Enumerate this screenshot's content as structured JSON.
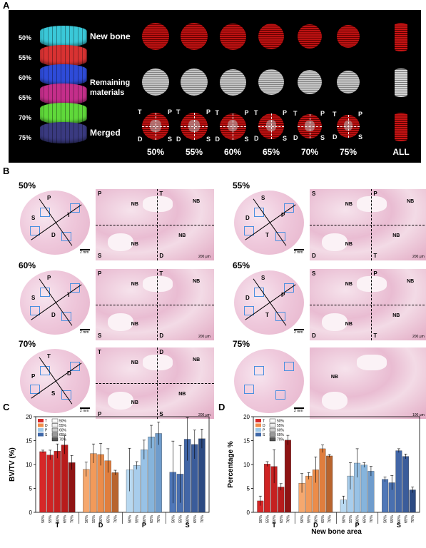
{
  "panel_labels": {
    "a": "A",
    "b": "B",
    "c": "C",
    "d": "D"
  },
  "panelA": {
    "stack_percentages": [
      "50%",
      "55%",
      "60%",
      "65%",
      "70%",
      "75%"
    ],
    "row_labels": {
      "new_bone": "New bone",
      "remaining_line1": "Remaining",
      "remaining_line2": "materials",
      "merged": "Merged"
    },
    "column_labels": [
      "50%",
      "55%",
      "60%",
      "65%",
      "70%",
      "75%",
      "ALL"
    ],
    "merged_quadrant_letters": [
      "T",
      "P",
      "D",
      "S"
    ],
    "colors": {
      "new_bone": "#c81414",
      "remaining": "#bdbdbd",
      "stack": [
        "#3ac8d8",
        "#d83232",
        "#2e4bd8",
        "#c42e8a",
        "#5fd83a",
        "#3a3a80"
      ]
    }
  },
  "panelB": {
    "groups": [
      {
        "label": "50%",
        "quadrants": [
          "P",
          "T",
          "S",
          "D"
        ],
        "overview_letters": [
          "P",
          "T",
          "S",
          "D"
        ],
        "nb_labels": [
          "NB",
          "NB",
          "NB",
          "NB"
        ]
      },
      {
        "label": "55%",
        "quadrants": [
          "S",
          "P",
          "D",
          "T"
        ],
        "overview_letters": [
          "S",
          "P",
          "D",
          "T"
        ],
        "nb_labels": [
          "NB",
          "NB",
          "NB",
          "NB"
        ]
      },
      {
        "label": "60%",
        "quadrants": [
          "P",
          "T",
          "S",
          "D"
        ],
        "overview_letters": [
          "P",
          "T",
          "S",
          "D"
        ],
        "nb_labels": [
          "NB",
          "NB",
          "NB"
        ]
      },
      {
        "label": "65%",
        "quadrants": [
          "S",
          "P",
          "D",
          "T"
        ],
        "overview_letters": [
          "S",
          "P",
          "D",
          "T"
        ],
        "nb_labels": [
          "NB",
          "NB",
          "NB",
          "NB"
        ]
      },
      {
        "label": "70%",
        "quadrants": [
          "T",
          "D",
          "P",
          "S"
        ],
        "overview_letters": [
          "T",
          "D",
          "P",
          "S"
        ],
        "nb_labels": [
          "NB",
          "NB",
          "NB",
          "NB"
        ]
      },
      {
        "label": "75%",
        "quadrants": [],
        "overview_letters": [],
        "nb_labels": [
          "NB"
        ]
      }
    ],
    "scalebar_overview": "2 mm",
    "scalebar_detail": "200 μm",
    "scalebar_detail_75": "100 μm"
  },
  "chart_data": [
    {
      "type": "bar",
      "ylabel": "BV/TV (%)",
      "xlabel": "",
      "ylim": [
        0,
        20
      ],
      "yticks": [
        0,
        5,
        10,
        15,
        20
      ],
      "groups": [
        "T",
        "D",
        "P",
        "S"
      ],
      "categories": [
        "50%",
        "55%",
        "60%",
        "65%",
        "70%"
      ],
      "legend_groups": [
        "T",
        "D",
        "P",
        "S"
      ],
      "legend_levels": [
        "50%",
        "55%",
        "60%",
        "65%",
        "70%"
      ],
      "group_colors": {
        "T": "#d62728",
        "D": "#f08c4a",
        "P": "#9ec8e8",
        "S": "#3f67a8"
      },
      "series": [
        {
          "name": "T",
          "values": [
            12.7,
            12.0,
            12.8,
            14.1,
            10.4
          ],
          "errors": [
            0.3,
            1.0,
            1.5,
            1.9,
            1.5
          ]
        },
        {
          "name": "D",
          "values": [
            9.0,
            12.3,
            12.1,
            10.8,
            8.3
          ],
          "errors": [
            1.5,
            2.0,
            2.3,
            2.5,
            0.5
          ]
        },
        {
          "name": "P",
          "values": [
            8.9,
            9.8,
            13.1,
            15.8,
            16.5
          ],
          "errors": [
            4.5,
            0.8,
            2.0,
            2.4,
            2.4
          ]
        },
        {
          "name": "S",
          "values": [
            8.4,
            8.0,
            15.3,
            14.2,
            15.4
          ],
          "errors": [
            6.5,
            6.0,
            4.5,
            3.0,
            2.0
          ]
        }
      ]
    },
    {
      "type": "bar",
      "ylabel": "Percentage %",
      "xlabel": "New bone area",
      "ylim": [
        0,
        20
      ],
      "yticks": [
        0,
        5,
        10,
        15,
        20
      ],
      "groups": [
        "T",
        "D",
        "P",
        "S"
      ],
      "categories": [
        "50%",
        "55%",
        "60%",
        "65%",
        "70%"
      ],
      "legend_groups": [
        "T",
        "D",
        "P",
        "S"
      ],
      "legend_levels": [
        "50%",
        "55%",
        "60%",
        "65%",
        "70%"
      ],
      "group_colors": {
        "T": "#d62728",
        "D": "#f08c4a",
        "P": "#9ec8e8",
        "S": "#3f67a8"
      },
      "series": [
        {
          "name": "T",
          "values": [
            2.4,
            10.1,
            9.6,
            5.3,
            15.1
          ],
          "errors": [
            1.0,
            0.5,
            3.5,
            0.7,
            1.0
          ]
        },
        {
          "name": "D",
          "values": [
            6.1,
            7.6,
            8.9,
            13.3,
            11.8
          ],
          "errors": [
            2.0,
            0.7,
            2.7,
            0.8,
            0.3
          ]
        },
        {
          "name": "P",
          "values": [
            2.6,
            7.6,
            10.3,
            9.9,
            8.6
          ],
          "errors": [
            0.8,
            2.8,
            3.0,
            0.5,
            1.0
          ]
        },
        {
          "name": "S",
          "values": [
            6.9,
            6.2,
            12.9,
            11.7,
            4.7
          ],
          "errors": [
            0.5,
            1.5,
            0.4,
            0.5,
            0.6
          ]
        }
      ]
    }
  ]
}
